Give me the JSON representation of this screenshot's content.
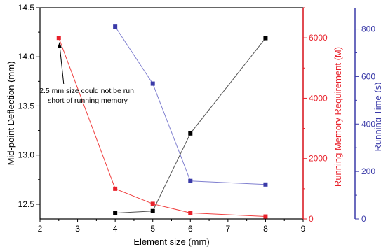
{
  "chart_data": {
    "type": "line",
    "xlabel": "Element size (mm)",
    "xlim": [
      2,
      9
    ],
    "x_ticks": [
      2,
      3,
      4,
      5,
      6,
      7,
      8,
      9
    ],
    "axes": {
      "left": {
        "label": "Mid-point Deflection (mm)",
        "ylim": [
          12.35,
          14.5
        ],
        "ticks": [
          12.5,
          13.0,
          13.5,
          14.0,
          14.5
        ],
        "tick_labels": [
          "12.5",
          "13.0",
          "13.5",
          "14.0",
          "14.5"
        ],
        "color": "#000000"
      },
      "right1": {
        "label": "Running Memory Requirement (M)",
        "ylim": [
          0,
          7000
        ],
        "ticks": [
          0,
          2000,
          4000,
          6000
        ],
        "tick_labels": [
          "0",
          "2000",
          "4000",
          "6000"
        ],
        "color": "#e8202a"
      },
      "right2": {
        "label": "Running Time (s)",
        "ylim": [
          0,
          890
        ],
        "ticks": [
          0,
          200,
          400,
          600,
          800
        ],
        "tick_labels": [
          "0",
          "200",
          "400",
          "600",
          "800"
        ],
        "color": "#3a3aa8"
      }
    },
    "series": [
      {
        "axis": "left",
        "color": "#000000",
        "line_color": "#555555",
        "x": [
          4,
          5,
          6,
          8
        ],
        "y": [
          12.41,
          12.43,
          13.22,
          14.19
        ]
      },
      {
        "axis": "right1",
        "color": "#e8202a",
        "line_color": "#f04040",
        "x": [
          2.5,
          4,
          5,
          6,
          8
        ],
        "y": [
          6000,
          1000,
          500,
          200,
          80
        ]
      },
      {
        "axis": "right2",
        "color": "#3a3aa8",
        "line_color": "#8080d0",
        "x": [
          4,
          5,
          6,
          8
        ],
        "y": [
          810,
          570,
          160,
          145
        ]
      }
    ],
    "annotation": {
      "lines": [
        "2.5 mm size could not be run,",
        "short of running memory"
      ],
      "points_to": {
        "x": 2.5,
        "series": "right1",
        "y": 6000
      }
    }
  }
}
